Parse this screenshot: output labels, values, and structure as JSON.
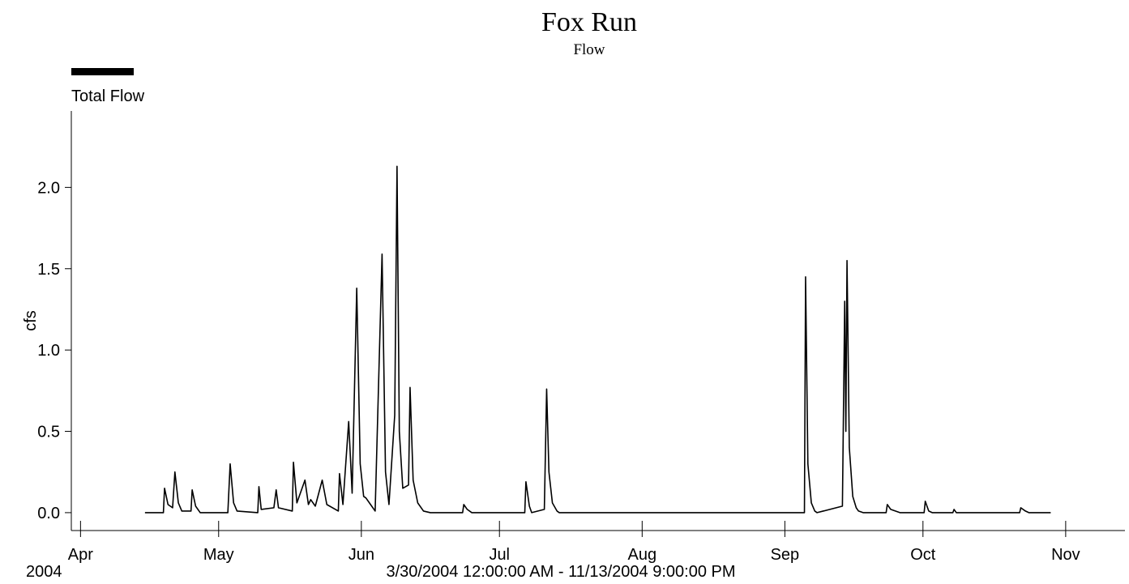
{
  "chart_data": {
    "type": "line",
    "title": "Fox Run",
    "subtitle": "Flow",
    "y_label": "cfs",
    "x_year_label": "2004",
    "x_range_label": "3/30/2004 12:00:00 AM - 11/13/2004 9:00:00 PM",
    "xlim": [
      "2004-03-30T00:00",
      "2004-11-13T21:00"
    ],
    "ylim": [
      -0.11,
      2.47
    ],
    "yticks": [
      {
        "value": 0,
        "label": "0.0"
      },
      {
        "value": 0.5,
        "label": "0.5"
      },
      {
        "value": 1,
        "label": "1.0"
      },
      {
        "value": 1.5,
        "label": "1.5"
      },
      {
        "value": 2,
        "label": "2.0"
      }
    ],
    "xticks": [
      {
        "value": "2004-04-01T00:00",
        "label": "Apr"
      },
      {
        "value": "2004-05-01T00:00",
        "label": "May"
      },
      {
        "value": "2004-06-01T00:00",
        "label": "Jun"
      },
      {
        "value": "2004-07-01T00:00",
        "label": "Jul"
      },
      {
        "value": "2004-08-01T00:00",
        "label": "Aug"
      },
      {
        "value": "2004-09-01T00:00",
        "label": "Sep"
      },
      {
        "value": "2004-10-01T00:00",
        "label": "Oct"
      },
      {
        "value": "2004-11-01T00:00",
        "label": "Nov"
      }
    ],
    "x": [
      "2004-04-15T00:00",
      "2004-04-19T00:00",
      "2004-04-19T06:00",
      "2004-04-20T00:00",
      "2004-04-21T00:00",
      "2004-04-21T12:00",
      "2004-04-22T06:00",
      "2004-04-23T00:00",
      "2004-04-25T00:00",
      "2004-04-25T06:00",
      "2004-04-26T00:00",
      "2004-04-27T00:00",
      "2004-05-03T00:00",
      "2004-05-03T12:00",
      "2004-05-04T06:00",
      "2004-05-05T00:00",
      "2004-05-09T12:00",
      "2004-05-09T18:00",
      "2004-05-10T06:00",
      "2004-05-13T00:00",
      "2004-05-13T12:00",
      "2004-05-14T00:00",
      "2004-05-17T00:00",
      "2004-05-17T06:00",
      "2004-05-18T00:00",
      "2004-05-19T18:00",
      "2004-05-20T12:00",
      "2004-05-21T00:00",
      "2004-05-22T00:00",
      "2004-05-23T12:00",
      "2004-05-24T12:00",
      "2004-05-27T00:00",
      "2004-05-27T06:00",
      "2004-05-28T00:00",
      "2004-05-29T06:00",
      "2004-05-30T00:00",
      "2004-05-31T00:00",
      "2004-05-31T18:00",
      "2004-06-01T12:00",
      "2004-06-02T00:00",
      "2004-06-03T00:00",
      "2004-06-04T00:00",
      "2004-06-05T12:00",
      "2004-06-06T06:00",
      "2004-06-07T00:00",
      "2004-06-08T06:00",
      "2004-06-08T18:00",
      "2004-06-09T06:00",
      "2004-06-10T00:00",
      "2004-06-11T06:00",
      "2004-06-11T14:00",
      "2004-06-12T06:00",
      "2004-06-13T06:00",
      "2004-06-14T12:00",
      "2004-06-16T00:00",
      "2004-06-23T00:00",
      "2004-06-23T06:00",
      "2004-06-24T00:00",
      "2004-06-25T00:00",
      "2004-07-06T12:00",
      "2004-07-06T18:00",
      "2004-07-07T12:00",
      "2004-07-08T00:00",
      "2004-07-10T18:00",
      "2004-07-11T06:00",
      "2004-07-11T18:00",
      "2004-07-12T12:00",
      "2004-07-13T12:00",
      "2004-07-14T00:00",
      "2004-09-05T06:00",
      "2004-09-05T12:00",
      "2004-09-06T00:00",
      "2004-09-06T18:00",
      "2004-09-07T12:00",
      "2004-09-08T00:00",
      "2004-09-13T12:00",
      "2004-09-14T00:00",
      "2004-09-14T06:00",
      "2004-09-14T12:00",
      "2004-09-15T00:00",
      "2004-09-15T18:00",
      "2004-09-16T12:00",
      "2004-09-17T00:00",
      "2004-09-18T00:00",
      "2004-09-23T00:00",
      "2004-09-23T06:00",
      "2004-09-24T00:00",
      "2004-09-25T00:00",
      "2004-09-26T00:00",
      "2004-10-01T06:00",
      "2004-10-01T12:00",
      "2004-10-02T06:00",
      "2004-10-03T00:00",
      "2004-10-07T12:00",
      "2004-10-07T18:00",
      "2004-10-08T06:00",
      "2004-10-22T00:00",
      "2004-10-22T06:00",
      "2004-10-23T06:00",
      "2004-10-24T00:00",
      "2004-10-28T18:00"
    ],
    "series": [
      {
        "name": "Total Flow",
        "color": "#000000",
        "values": [
          0,
          0,
          0.15,
          0.05,
          0.03,
          0.25,
          0.06,
          0.01,
          0.01,
          0.14,
          0.04,
          0,
          0,
          0.3,
          0.06,
          0.01,
          0,
          0.16,
          0.02,
          0.03,
          0.14,
          0.03,
          0.01,
          0.31,
          0.06,
          0.2,
          0.05,
          0.08,
          0.04,
          0.2,
          0.05,
          0.01,
          0.24,
          0.05,
          0.56,
          0.12,
          1.38,
          0.3,
          0.1,
          0.09,
          0.05,
          0.01,
          1.59,
          0.25,
          0.05,
          0.6,
          2.13,
          0.5,
          0.15,
          0.17,
          0.77,
          0.2,
          0.06,
          0.01,
          0,
          0,
          0.05,
          0.02,
          0,
          0,
          0.19,
          0.04,
          0,
          0.02,
          0.76,
          0.25,
          0.06,
          0.01,
          0,
          0,
          1.45,
          0.3,
          0.06,
          0.01,
          0,
          0.04,
          1.3,
          0.5,
          1.55,
          0.4,
          0.1,
          0.03,
          0.01,
          0,
          0,
          0.05,
          0.02,
          0.01,
          0,
          0,
          0.07,
          0.01,
          0,
          0,
          0.02,
          0,
          0,
          0.03,
          0.01,
          0,
          0
        ]
      }
    ]
  }
}
